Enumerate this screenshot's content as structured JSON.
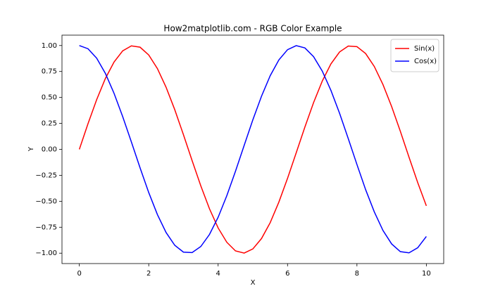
{
  "chart_data": {
    "type": "line",
    "title": "How2matplotlib.com - RGB Color Example",
    "xlabel": "X",
    "ylabel": "Y",
    "x": [
      0,
      0.25,
      0.5,
      0.75,
      1,
      1.25,
      1.5,
      1.75,
      2,
      2.25,
      2.5,
      2.75,
      3,
      3.25,
      3.5,
      3.75,
      4,
      4.25,
      4.5,
      4.75,
      5,
      5.25,
      5.5,
      5.75,
      6,
      6.25,
      6.5,
      6.75,
      7,
      7.25,
      7.5,
      7.75,
      8,
      8.25,
      8.5,
      8.75,
      9,
      9.25,
      9.5,
      9.75,
      10
    ],
    "series": [
      {
        "name": "Sin(x)",
        "color": "#ff0000",
        "values": [
          0,
          0.247,
          0.479,
          0.682,
          0.841,
          0.949,
          0.997,
          0.984,
          0.909,
          0.778,
          0.598,
          0.382,
          0.141,
          -0.108,
          -0.351,
          -0.572,
          -0.757,
          -0.895,
          -0.978,
          -0.999,
          -0.959,
          -0.859,
          -0.706,
          -0.508,
          -0.279,
          -0.033,
          0.215,
          0.45,
          0.657,
          0.823,
          0.938,
          0.995,
          0.989,
          0.923,
          0.798,
          0.624,
          0.412,
          0.174,
          -0.075,
          -0.319,
          -0.544
        ]
      },
      {
        "name": "Cos(x)",
        "color": "#0000ff",
        "values": [
          1,
          0.969,
          0.878,
          0.732,
          0.54,
          0.315,
          0.071,
          -0.178,
          -0.416,
          -0.628,
          -0.801,
          -0.924,
          -0.99,
          -0.994,
          -0.936,
          -0.82,
          -0.654,
          -0.446,
          -0.211,
          0.038,
          0.284,
          0.512,
          0.709,
          0.861,
          0.96,
          0.999,
          0.977,
          0.893,
          0.754,
          0.568,
          0.347,
          0.103,
          -0.146,
          -0.388,
          -0.602,
          -0.781,
          -0.911,
          -0.985,
          -0.997,
          -0.948,
          -0.839
        ]
      }
    ],
    "xlim": [
      -0.5,
      10.5
    ],
    "ylim": [
      -1.1,
      1.1
    ],
    "xticks": [
      0,
      2,
      4,
      6,
      8,
      10
    ],
    "yticks": [
      {
        "value": -1,
        "label": "−1.00"
      },
      {
        "value": -0.75,
        "label": "−0.75"
      },
      {
        "value": -0.5,
        "label": "−0.50"
      },
      {
        "value": -0.25,
        "label": "−0.25"
      },
      {
        "value": 0,
        "label": "0.00"
      },
      {
        "value": 0.25,
        "label": "0.25"
      },
      {
        "value": 0.5,
        "label": "0.50"
      },
      {
        "value": 0.75,
        "label": "0.75"
      },
      {
        "value": 1,
        "label": "1.00"
      }
    ],
    "legend": "upper right"
  }
}
